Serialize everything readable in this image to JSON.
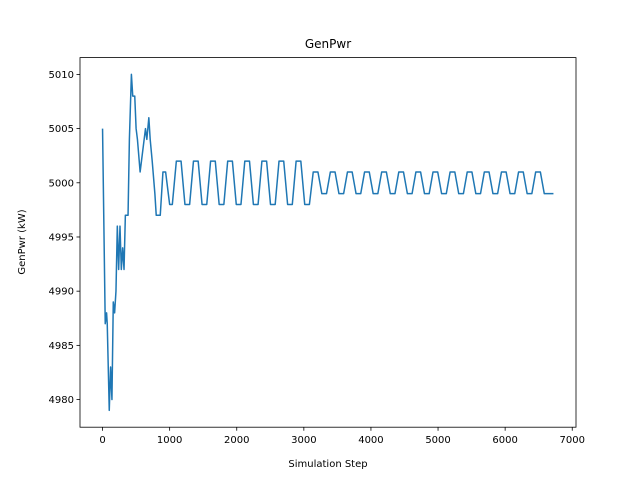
{
  "chart_data": {
    "type": "line",
    "title": "GenPwr",
    "xlabel": "Simulation Step",
    "ylabel": "GenPwr (kW)",
    "color": "#1f77b4",
    "x": [
      0,
      40,
      60,
      70,
      100,
      120,
      140,
      160,
      180,
      200,
      220,
      240,
      260,
      280,
      300,
      320,
      340,
      380,
      400,
      430,
      450,
      480,
      500,
      520,
      560,
      580,
      620,
      640,
      660,
      690,
      710,
      740,
      780,
      800,
      860,
      900,
      940,
      980,
      1000,
      1020,
      1040,
      1100,
      1170,
      1228,
      1298,
      1355,
      1425,
      1483,
      1553,
      1610,
      1680,
      1738,
      1808,
      1865,
      1935,
      1993,
      2063,
      2120,
      2190,
      2248,
      2318,
      2375,
      2445,
      2503,
      2573,
      2630,
      2700,
      2758,
      2828,
      2885,
      2955,
      3013,
      3083,
      3140,
      3210,
      3268,
      3338,
      3395,
      3465,
      3523,
      3593,
      3650,
      3720,
      3778,
      3848,
      3905,
      3975,
      4033,
      4103,
      4160,
      4230,
      4288,
      4358,
      4415,
      4485,
      4543,
      4613,
      4670,
      4740,
      4798,
      4868,
      4925,
      4995,
      5053,
      5123,
      5180,
      5250,
      5308,
      5378,
      5435,
      5505,
      5563,
      5633,
      5690,
      5760,
      5818,
      5888,
      5945,
      6015,
      6073,
      6143,
      6200,
      6270,
      6328,
      6398,
      6455,
      6525,
      6583,
      6720
    ],
    "values": [
      5005,
      4987,
      4988,
      4987,
      4979,
      4983,
      4980,
      4989,
      4988,
      4990,
      4996,
      4992,
      4996,
      4992,
      4994,
      4992,
      4997,
      4997,
      5004,
      5010,
      5008,
      5008,
      5005,
      5004,
      5001,
      5002,
      5004,
      5005,
      5004,
      5006,
      5004,
      5002,
      4999,
      4997,
      4997,
      5001,
      5001,
      4999,
      4998,
      4998,
      4998,
      5002,
      5002,
      4998,
      4998,
      5002,
      5002,
      4998,
      4998,
      5002,
      5002,
      4998,
      4998,
      5002,
      5002,
      4998,
      4998,
      5002,
      5002,
      4998,
      4998,
      5002,
      5002,
      4998,
      4998,
      5002,
      5002,
      4998,
      4998,
      5002,
      5002,
      4998,
      4998,
      5001,
      5001,
      4999,
      4999,
      5001,
      5001,
      4999,
      4999,
      5001,
      5001,
      4999,
      4999,
      5001,
      5001,
      4999,
      4999,
      5001,
      5001,
      4999,
      4999,
      5001,
      5001,
      4999,
      4999,
      5001,
      5001,
      4999,
      4999,
      5001,
      5001,
      4999,
      4999,
      5001,
      5001,
      4999,
      4999,
      5001,
      5001,
      4999,
      4999,
      5001,
      5001,
      4999,
      4999,
      5001,
      5001,
      4999,
      4999,
      5001,
      5001,
      4999,
      4999,
      5001,
      5001,
      4999,
      4999
    ],
    "xlim": [
      -336,
      7056
    ],
    "xticks": [
      0,
      1000,
      2000,
      3000,
      4000,
      5000,
      6000,
      7000
    ],
    "ylim": [
      4977.45,
      5011.55
    ],
    "yticks": [
      4980,
      4985,
      4990,
      4995,
      5000,
      5005,
      5010
    ]
  }
}
